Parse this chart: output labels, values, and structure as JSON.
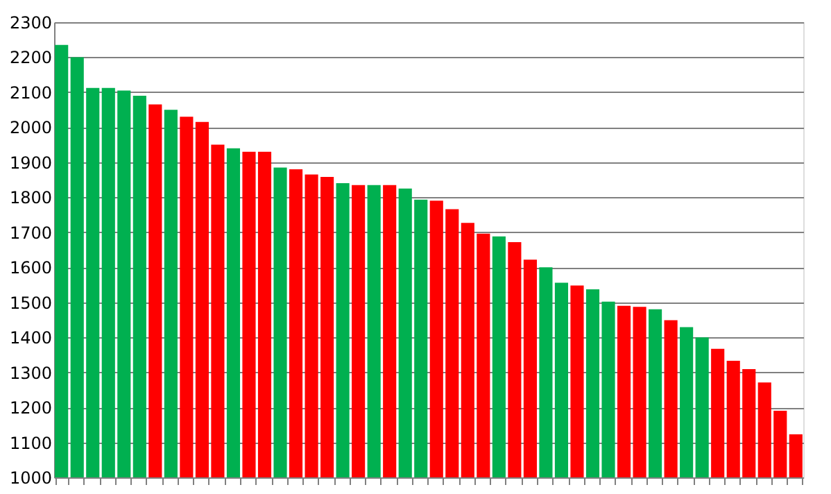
{
  "chart_data": {
    "type": "bar",
    "categories": [
      null,
      null,
      null,
      null,
      null,
      null,
      null,
      null,
      null,
      null,
      null,
      null,
      null,
      null,
      null,
      null,
      null,
      null,
      null,
      null,
      null,
      null,
      null,
      null,
      null,
      null,
      null,
      null,
      null,
      null,
      null,
      null,
      null,
      null,
      null,
      null,
      null,
      null,
      null,
      null,
      null,
      null,
      null,
      null,
      null,
      null,
      null,
      null
    ],
    "values": [
      2235,
      2200,
      2112,
      2112,
      2105,
      2090,
      2065,
      2050,
      2030,
      2015,
      1950,
      1940,
      1930,
      1930,
      1885,
      1880,
      1865,
      1858,
      1840,
      1835,
      1835,
      1835,
      1825,
      1793,
      1790,
      1766,
      1727,
      1696,
      1688,
      1672,
      1622,
      1600,
      1556,
      1548,
      1537,
      1502,
      1490,
      1487,
      1480,
      1449,
      1429,
      1400,
      1367,
      1333,
      1309,
      1271,
      1190,
      1123
    ],
    "colors": [
      "#00b050",
      "#00b050",
      "#00b050",
      "#00b050",
      "#00b050",
      "#00b050",
      "#ff0000",
      "#00b050",
      "#ff0000",
      "#ff0000",
      "#ff0000",
      "#00b050",
      "#ff0000",
      "#ff0000",
      "#00b050",
      "#ff0000",
      "#ff0000",
      "#ff0000",
      "#00b050",
      "#ff0000",
      "#00b050",
      "#ff0000",
      "#00b050",
      "#00b050",
      "#ff0000",
      "#ff0000",
      "#ff0000",
      "#ff0000",
      "#00b050",
      "#ff0000",
      "#ff0000",
      "#00b050",
      "#00b050",
      "#ff0000",
      "#00b050",
      "#00b050",
      "#ff0000",
      "#ff0000",
      "#00b050",
      "#ff0000",
      "#00b050",
      "#00b050",
      "#ff0000",
      "#ff0000",
      "#ff0000",
      "#ff0000",
      "#ff0000",
      "#ff0000"
    ],
    "ylim": [
      1000,
      2300
    ],
    "yticks": [
      1000,
      1100,
      1200,
      1300,
      1400,
      1500,
      1600,
      1700,
      1800,
      1900,
      2000,
      2100,
      2200,
      2300
    ],
    "grid": "y",
    "tick_labels": "y"
  }
}
